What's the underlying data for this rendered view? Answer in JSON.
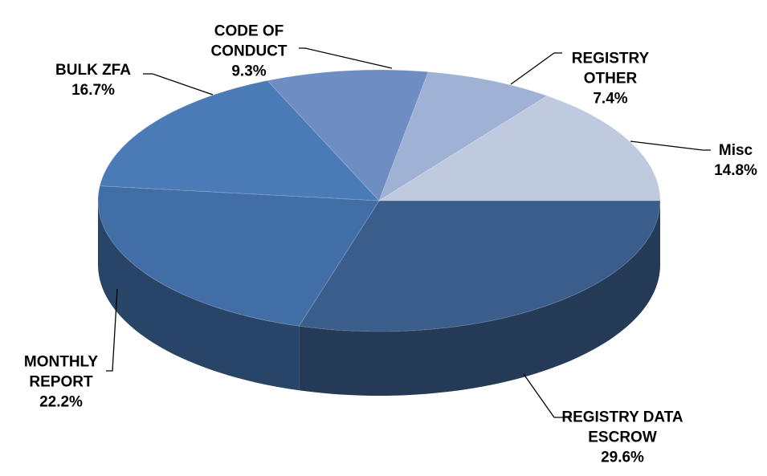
{
  "chart_data": {
    "type": "pie3d",
    "categories": [
      "REGISTRY DATA ESCROW",
      "MONTHLY REPORT",
      "BULK ZFA",
      "CODE OF CONDUCT",
      "REGISTRY OTHER",
      "Misc"
    ],
    "values": [
      29.6,
      22.2,
      16.7,
      9.3,
      7.4,
      14.8
    ],
    "value_labels": [
      "29.6%",
      "22.2%",
      "16.7%",
      "9.3%",
      "7.4%",
      "14.8%"
    ],
    "colors": [
      "#3a5d8b",
      "#416ea6",
      "#4a7bb7",
      "#6e8ec3",
      "#9fb1d4",
      "#c0cadf"
    ]
  }
}
